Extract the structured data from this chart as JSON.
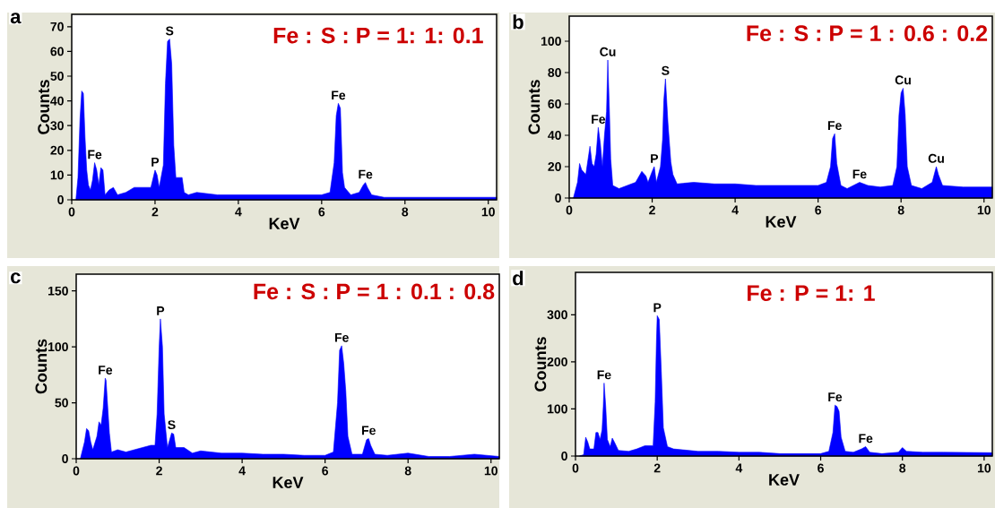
{
  "chart_data": [
    {
      "type": "area",
      "title": "Fe : S : P = 1: 1: 0.1",
      "xlabel": "KeV",
      "ylabel": "Counts",
      "color": "#0000ff",
      "xlim": [
        0,
        10.2
      ],
      "ylim": [
        0,
        75
      ],
      "xticks": [
        0,
        2,
        4,
        6,
        8,
        10
      ],
      "yticks": [
        0,
        10,
        20,
        30,
        40,
        50,
        60,
        70
      ],
      "x": [
        0.1,
        0.15,
        0.2,
        0.24,
        0.28,
        0.32,
        0.36,
        0.4,
        0.45,
        0.5,
        0.55,
        0.6,
        0.65,
        0.7,
        0.75,
        0.8,
        0.9,
        1.0,
        1.1,
        1.3,
        1.5,
        1.7,
        1.9,
        2.0,
        2.05,
        2.1,
        2.2,
        2.25,
        2.3,
        2.35,
        2.4,
        2.45,
        2.5,
        2.65,
        2.7,
        2.8,
        3.0,
        3.5,
        4.0,
        4.5,
        5.0,
        5.5,
        6.0,
        6.2,
        6.3,
        6.35,
        6.4,
        6.45,
        6.5,
        6.55,
        6.7,
        6.9,
        7.0,
        7.05,
        7.1,
        7.2,
        7.5,
        8.0,
        9.0,
        10.2
      ],
      "values": [
        0,
        9,
        33,
        44,
        43,
        25,
        12,
        6,
        4,
        8,
        15,
        12,
        6,
        13,
        12,
        2,
        4,
        5,
        2,
        3,
        5,
        5,
        5,
        12,
        10,
        5,
        14,
        47,
        64,
        65,
        55,
        22,
        9,
        9,
        3,
        2,
        3,
        2,
        2,
        2,
        2,
        2,
        2,
        3,
        15,
        34,
        39,
        37,
        11,
        5,
        2,
        3,
        6,
        7,
        5,
        2,
        1,
        1,
        1,
        1
      ],
      "annotations": [
        "a",
        {
          "text": "Fe",
          "x": 0.55,
          "y": 15
        },
        {
          "text": "P",
          "x": 2.0,
          "y": 12
        },
        {
          "text": "S",
          "x": 2.35,
          "y": 65
        },
        {
          "text": "Fe",
          "x": 6.4,
          "y": 39
        },
        {
          "text": "Fe",
          "x": 7.05,
          "y": 7
        }
      ]
    },
    {
      "type": "area",
      "title": "Fe : S : P = 1 : 0.6 : 0.2",
      "xlabel": "KeV",
      "ylabel": "Counts",
      "color": "#0000ff",
      "xlim": [
        0,
        10.2
      ],
      "ylim": [
        0,
        116
      ],
      "xticks": [
        0,
        2,
        4,
        6,
        8,
        10
      ],
      "yticks": [
        0,
        20,
        40,
        60,
        80,
        100
      ],
      "x": [
        0.1,
        0.2,
        0.25,
        0.3,
        0.4,
        0.5,
        0.55,
        0.6,
        0.65,
        0.7,
        0.75,
        0.8,
        0.85,
        0.9,
        0.93,
        0.97,
        1.0,
        1.05,
        1.2,
        1.4,
        1.6,
        1.75,
        1.85,
        1.9,
        2.0,
        2.05,
        2.1,
        2.2,
        2.25,
        2.28,
        2.32,
        2.38,
        2.45,
        2.5,
        2.6,
        3.0,
        3.5,
        4.0,
        4.5,
        5.0,
        5.5,
        6.0,
        6.2,
        6.3,
        6.35,
        6.4,
        6.45,
        6.55,
        6.7,
        7.0,
        7.2,
        7.5,
        7.8,
        7.9,
        7.95,
        8.0,
        8.05,
        8.1,
        8.15,
        8.25,
        8.5,
        8.75,
        8.85,
        8.9,
        9.0,
        9.5,
        10.2
      ],
      "values": [
        0,
        10,
        22,
        18,
        15,
        33,
        22,
        20,
        28,
        45,
        35,
        20,
        40,
        55,
        88,
        55,
        25,
        8,
        6,
        8,
        10,
        17,
        14,
        10,
        17,
        20,
        10,
        20,
        37,
        62,
        76,
        48,
        23,
        15,
        9,
        10,
        9,
        9,
        8,
        8,
        8,
        8,
        10,
        20,
        38,
        41,
        22,
        8,
        6,
        10,
        8,
        7,
        8,
        20,
        53,
        67,
        70,
        53,
        20,
        8,
        6,
        10,
        20,
        15,
        8,
        7,
        7
      ],
      "annotations": [
        "b",
        {
          "text": "Fe",
          "x": 0.7,
          "y": 45
        },
        {
          "text": "Cu",
          "x": 0.93,
          "y": 88
        },
        {
          "text": "P",
          "x": 2.05,
          "y": 20
        },
        {
          "text": "S",
          "x": 2.32,
          "y": 76
        },
        {
          "text": "Fe",
          "x": 6.4,
          "y": 41
        },
        {
          "text": "Fe",
          "x": 7.0,
          "y": 10
        },
        {
          "text": "Cu",
          "x": 8.05,
          "y": 70
        },
        {
          "text": "Cu",
          "x": 8.85,
          "y": 20
        }
      ]
    },
    {
      "type": "area",
      "title": "Fe : S : P = 1 : 0.1 : 0.8",
      "xlabel": "KeV",
      "ylabel": "Counts",
      "color": "#0000ff",
      "xlim": [
        0,
        10.2
      ],
      "ylim": [
        0,
        165
      ],
      "xticks": [
        0,
        2,
        4,
        6,
        8,
        10
      ],
      "yticks": [
        0,
        50,
        100,
        150
      ],
      "x": [
        0.1,
        0.2,
        0.25,
        0.3,
        0.35,
        0.4,
        0.5,
        0.55,
        0.6,
        0.65,
        0.7,
        0.72,
        0.75,
        0.8,
        0.85,
        1.0,
        1.2,
        1.5,
        1.8,
        1.9,
        1.95,
        2.0,
        2.03,
        2.08,
        2.12,
        2.2,
        2.3,
        2.35,
        2.4,
        2.6,
        2.8,
        3.0,
        3.5,
        4.0,
        4.5,
        5.0,
        5.5,
        6.0,
        6.2,
        6.3,
        6.35,
        6.4,
        6.45,
        6.5,
        6.55,
        6.65,
        6.9,
        7.0,
        7.05,
        7.1,
        7.2,
        7.5,
        8.0,
        8.5,
        9.0,
        9.6,
        10.2
      ],
      "values": [
        0,
        15,
        27,
        25,
        15,
        8,
        20,
        33,
        30,
        45,
        72,
        70,
        52,
        23,
        6,
        8,
        6,
        9,
        12,
        12,
        40,
        100,
        125,
        100,
        40,
        10,
        23,
        22,
        10,
        10,
        5,
        7,
        5,
        5,
        4,
        4,
        3,
        3,
        6,
        50,
        97,
        101,
        85,
        60,
        20,
        4,
        4,
        17,
        18,
        12,
        4,
        3,
        5,
        2,
        2,
        4,
        2
      ],
      "annotations": [
        "c",
        {
          "text": "Fe",
          "x": 0.7,
          "y": 72
        },
        {
          "text": "P",
          "x": 2.03,
          "y": 125
        },
        {
          "text": "S",
          "x": 2.3,
          "y": 23
        },
        {
          "text": "Fe",
          "x": 6.4,
          "y": 101
        },
        {
          "text": "Fe",
          "x": 7.05,
          "y": 18
        }
      ]
    },
    {
      "type": "area",
      "title": "Fe : P = 1: 1",
      "xlabel": "KeV",
      "ylabel": "Counts",
      "color": "#0000ff",
      "xlim": [
        0,
        10.2
      ],
      "ylim": [
        0,
        390
      ],
      "xticks": [
        0,
        2,
        4,
        6,
        8,
        10
      ],
      "yticks": [
        0,
        100,
        200,
        300
      ],
      "x": [
        0.1,
        0.2,
        0.25,
        0.3,
        0.35,
        0.45,
        0.5,
        0.55,
        0.6,
        0.65,
        0.68,
        0.7,
        0.74,
        0.78,
        0.85,
        0.9,
        0.95,
        1.05,
        1.3,
        1.5,
        1.7,
        1.9,
        1.95,
        1.98,
        2.0,
        2.05,
        2.1,
        2.15,
        2.25,
        2.4,
        3.0,
        3.5,
        4.0,
        4.5,
        5.0,
        5.5,
        6.0,
        6.2,
        6.3,
        6.35,
        6.4,
        6.45,
        6.5,
        6.6,
        6.8,
        7.0,
        7.1,
        7.2,
        7.5,
        7.9,
        8.0,
        8.1,
        8.5,
        9.0,
        10.2
      ],
      "values": [
        0,
        3,
        40,
        30,
        15,
        15,
        50,
        50,
        35,
        55,
        105,
        155,
        105,
        35,
        20,
        38,
        30,
        12,
        10,
        15,
        22,
        22,
        115,
        240,
        298,
        290,
        180,
        60,
        20,
        15,
        10,
        10,
        8,
        8,
        5,
        5,
        5,
        10,
        50,
        108,
        105,
        95,
        40,
        10,
        8,
        15,
        20,
        8,
        5,
        8,
        18,
        10,
        8,
        8,
        7
      ],
      "annotations": [
        "d",
        {
          "text": "Fe",
          "x": 0.7,
          "y": 155
        },
        {
          "text": "P",
          "x": 2.0,
          "y": 298
        },
        {
          "text": "Fe",
          "x": 6.35,
          "y": 108
        },
        {
          "text": "Fe",
          "x": 7.1,
          "y": 20
        }
      ]
    }
  ]
}
